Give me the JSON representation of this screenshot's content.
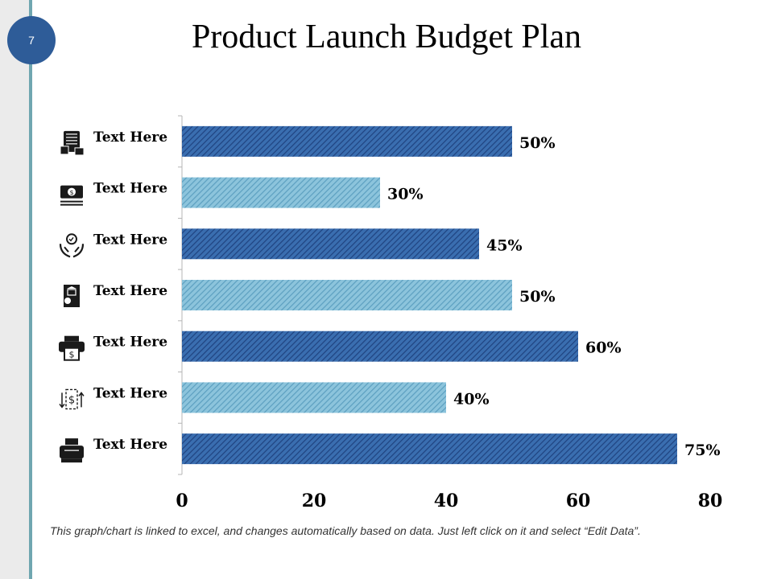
{
  "page": {
    "number": "7"
  },
  "title": "Product Launch Budget Plan",
  "footnote": "This graph/chart is linked to excel, and changes automatically based on data. Just left click on it and select “Edit Data”.",
  "colors": {
    "dark": "#2e5c98",
    "light": "#7ab6d2",
    "accent_line": "#6fa6b0"
  },
  "chart_data": {
    "type": "bar",
    "orientation": "horizontal",
    "title": "Product Launch Budget Plan",
    "categories": [
      {
        "label": "Text Here",
        "icon": "calculator-document-icon"
      },
      {
        "label": "Text Here",
        "icon": "money-bill-icon"
      },
      {
        "label": "Text Here",
        "icon": "hands-holding-bulb-icon"
      },
      {
        "label": "Text Here",
        "icon": "bank-document-icon"
      },
      {
        "label": "Text Here",
        "icon": "printer-dollar-icon"
      },
      {
        "label": "Text Here",
        "icon": "dollar-exchange-icon"
      },
      {
        "label": "Text Here",
        "icon": "cash-register-icon"
      }
    ],
    "values": [
      50,
      30,
      45,
      50,
      60,
      40,
      75
    ],
    "data_labels": [
      "50%",
      "30%",
      "45%",
      "50%",
      "60%",
      "40%",
      "75%"
    ],
    "bar_styles": [
      "dark",
      "light",
      "dark",
      "light",
      "dark",
      "light",
      "dark"
    ],
    "xlim": [
      0,
      80
    ],
    "xticks": [
      "0",
      "20",
      "40",
      "60",
      "80"
    ],
    "xlabel": "",
    "ylabel": "",
    "grid": false,
    "legend": "none"
  }
}
